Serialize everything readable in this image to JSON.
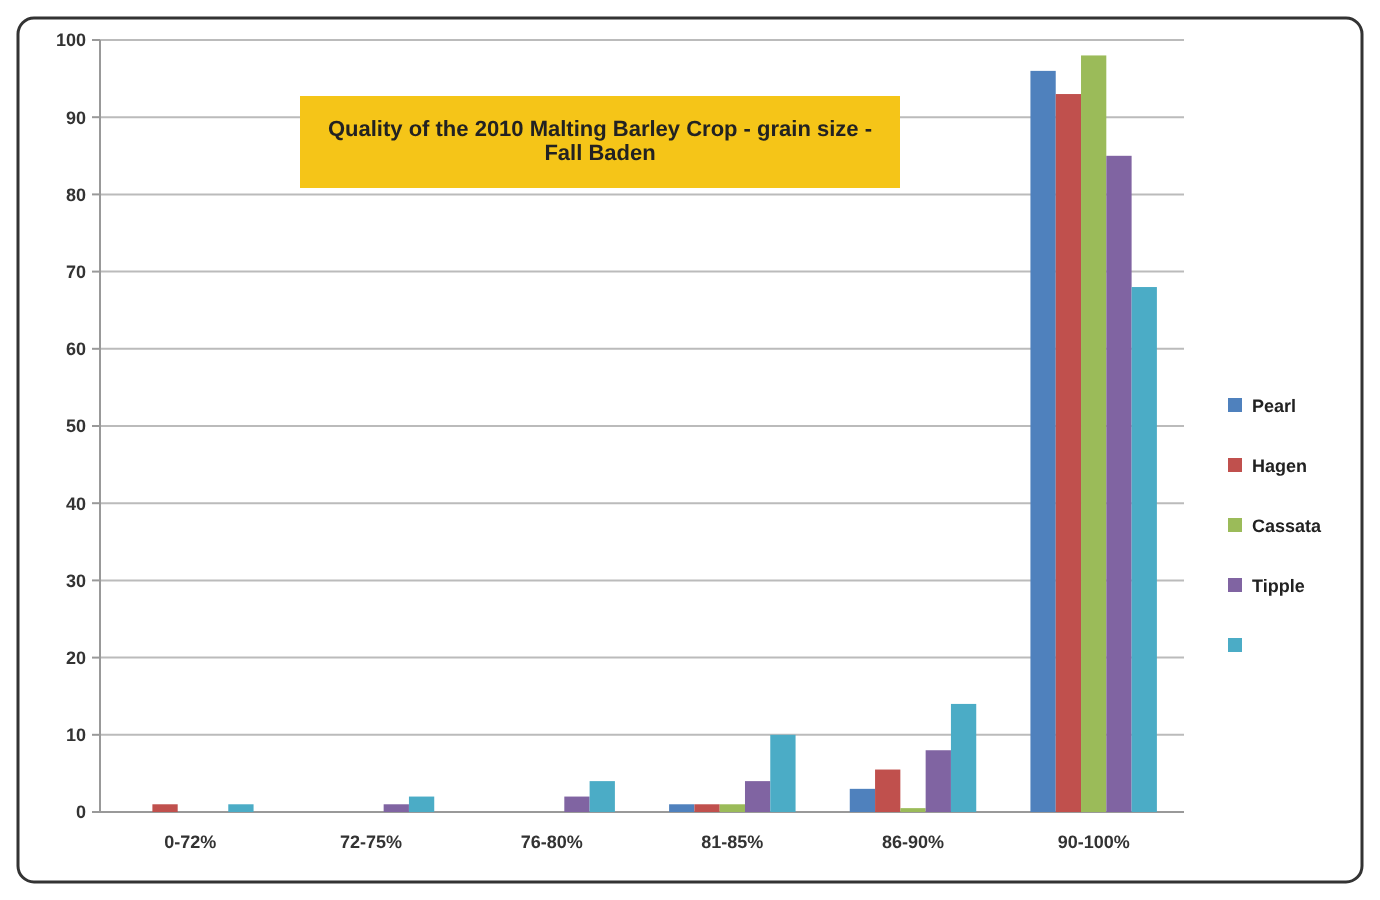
{
  "chart_data": {
    "type": "bar",
    "title": "Quality of the 2010 Malting Barley Crop - grain size - Fall Baden",
    "categories": [
      "0-72%",
      "72-75%",
      "76-80%",
      "81-85%",
      "86-90%",
      "90-100%"
    ],
    "series": [
      {
        "name": "Pearl",
        "color": "#4f81bd",
        "values": [
          0,
          0,
          0,
          1,
          3,
          96
        ]
      },
      {
        "name": "Hagen",
        "color": "#c0504d",
        "values": [
          1,
          0,
          0,
          1,
          5.5,
          93
        ]
      },
      {
        "name": "Cassata",
        "color": "#9bbb59",
        "values": [
          0,
          0,
          0,
          1,
          0.5,
          98
        ]
      },
      {
        "name": "Tipple",
        "color": "#8064a2",
        "values": [
          0,
          1,
          2,
          4,
          8,
          85
        ]
      },
      {
        "color": "#4bacc6",
        "values": [
          1,
          2,
          4,
          10,
          14,
          68
        ]
      }
    ],
    "ylim": [
      0,
      100
    ],
    "yticks": [
      0,
      10,
      20,
      30,
      40,
      50,
      60,
      70,
      80,
      90,
      100
    ],
    "grid": "y",
    "legend": "right"
  }
}
